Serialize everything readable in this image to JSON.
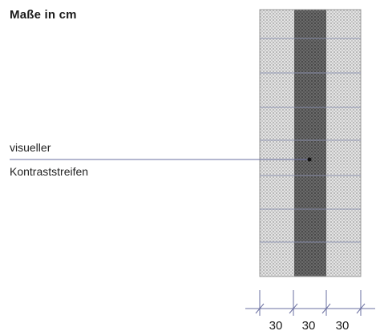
{
  "title": "Maße in cm",
  "callout": {
    "line1": "visueller",
    "line2": "Kontraststreifen"
  },
  "dimensions": [
    "30",
    "30",
    "30"
  ],
  "colors": {
    "light_paving": "#d6d6d6",
    "dark_stripe": "#5c5c5c",
    "joint_line": "#8a8fae",
    "callout_line": "#6a6fa0"
  }
}
